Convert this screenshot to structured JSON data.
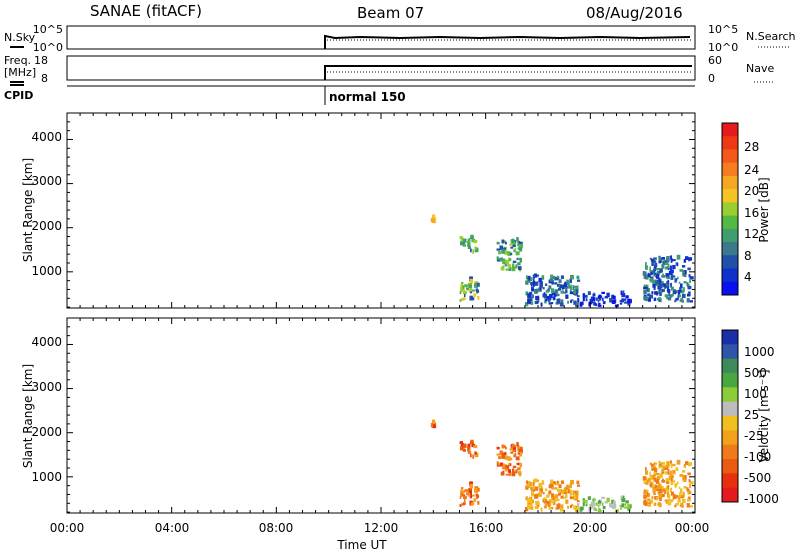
{
  "header": {
    "station": "SANAE (fitACF)",
    "beam": "Beam 07",
    "date": "08/Aug/2016"
  },
  "noise_panel": {
    "left_label": "N.Sky",
    "right_label": "N.Search",
    "left_ticks": [
      "10^5",
      "10^0"
    ],
    "right_ticks": [
      "10^5",
      "10^0"
    ]
  },
  "freq_panel": {
    "left_label_1": "Freq.",
    "left_label_2": "[MHz]",
    "right_label": "Nave",
    "left_ticks": [
      "18",
      "8"
    ],
    "right_ticks": [
      "60",
      "0"
    ]
  },
  "cpid_panel": {
    "label": "CPID",
    "mode": "normal 150",
    "mode_start_hour": 9.3
  },
  "x_axis": {
    "title": "Time UT",
    "ticks": [
      "00:00",
      "04:00",
      "08:00",
      "12:00",
      "16:00",
      "20:00",
      "00:00"
    ],
    "range_hours": [
      0,
      24
    ]
  },
  "power_colorbar": {
    "title": "Power [dB]",
    "tick_labels": [
      "28",
      "24",
      "20",
      "16",
      "12",
      "8",
      "4"
    ],
    "colors": [
      "#e41a1c",
      "#ee3a12",
      "#f2591a",
      "#f57c1f",
      "#f5a623",
      "#f5c423",
      "#9acd32",
      "#55b840",
      "#3f9e6e",
      "#3a7a8c",
      "#2050a8",
      "#1030cc",
      "#0a10f0"
    ]
  },
  "velocity_colorbar": {
    "title": "Velocity [m s⁻¹]",
    "tick_labels": [
      "1000",
      "500",
      "100",
      "25",
      "-25",
      "-100",
      "-500",
      "-1000"
    ],
    "colors": [
      "#1a2ea8",
      "#2f55a8",
      "#3f8a5a",
      "#4aa640",
      "#8ccc3a",
      "#bcbcbc",
      "#f0c020",
      "#f2a21a",
      "#f07a1a",
      "#ea5a10",
      "#e83010",
      "#e41a1c"
    ]
  },
  "chart_data": {
    "type": "heatmap",
    "panels": [
      {
        "name": "power",
        "ylabel": "Slant Range [km]",
        "yticks": [
          "4000",
          "3000",
          "2000",
          "1000"
        ],
        "ylim": [
          180,
          4600
        ],
        "xlim": [
          0,
          24
        ],
        "zlabel": "Power [dB]",
        "zlim": [
          0,
          32
        ]
      },
      {
        "name": "velocity",
        "ylabel": "Slant Range [km]",
        "yticks": [
          "4000",
          "3000",
          "2000",
          "1000"
        ],
        "ylim": [
          180,
          4600
        ],
        "xlim": [
          0,
          24
        ],
        "zlabel": "Velocity [m s⁻¹]"
      }
    ],
    "echo_clusters": [
      {
        "t": [
          15.0,
          15.7
        ],
        "r": [
          300,
          800
        ],
        "power": "10-20",
        "velocity": "-100 to -500"
      },
      {
        "t": [
          15.0,
          15.6
        ],
        "r": [
          1400,
          1750
        ],
        "power": "8-16",
        "velocity": "-100 to -500"
      },
      {
        "t": [
          16.4,
          17.3
        ],
        "r": [
          1000,
          1700
        ],
        "power": "8-16",
        "velocity": "-100 to -500"
      },
      {
        "t": [
          13.9,
          14.0
        ],
        "r": [
          2100,
          2200
        ],
        "power": "16-20",
        "velocity": "-100 to -500"
      },
      {
        "t": [
          17.5,
          19.5
        ],
        "r": [
          200,
          900
        ],
        "power": "4-12",
        "velocity": "-25 to -100"
      },
      {
        "t": [
          19.5,
          21.5
        ],
        "r": [
          200,
          500
        ],
        "power": "0-8",
        "velocity": "25 to 100"
      },
      {
        "t": [
          22.0,
          23.8
        ],
        "r": [
          300,
          1300
        ],
        "power": "4-12",
        "velocity": "-25 to -100"
      }
    ]
  }
}
